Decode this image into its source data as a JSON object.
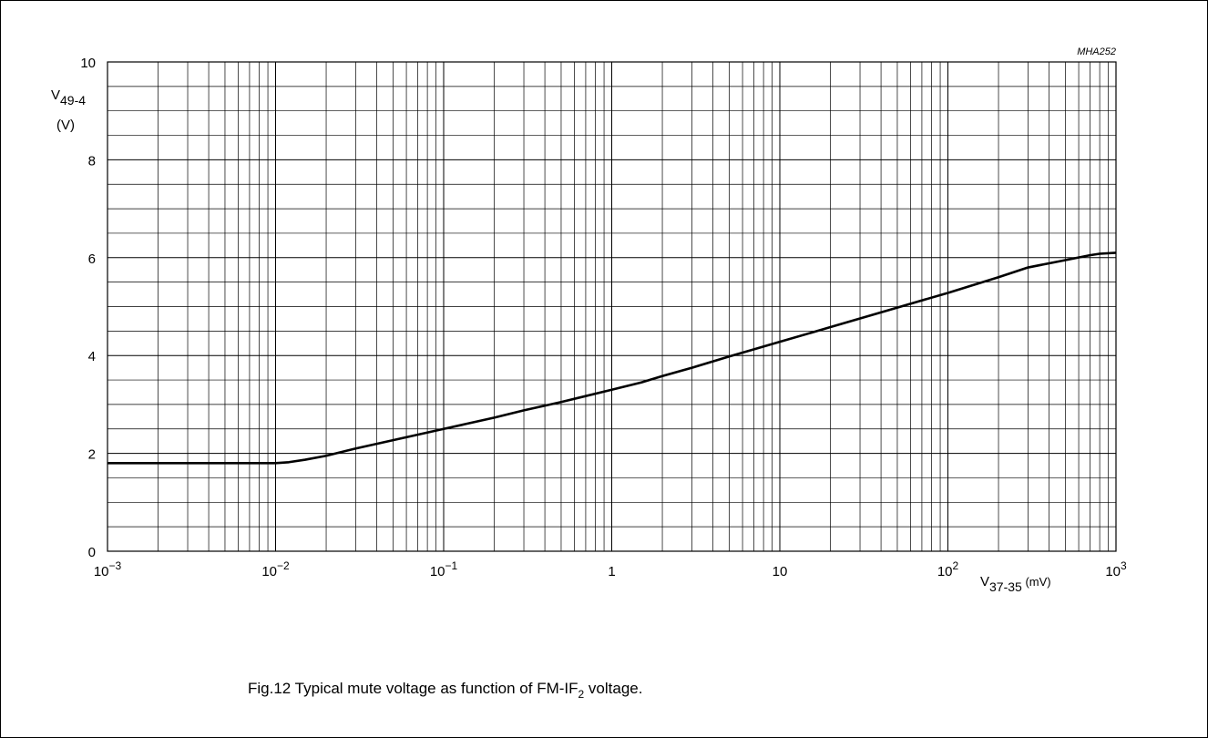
{
  "figure_code": "MHA252",
  "caption": {
    "prefix": "Fig.12  Typical mute voltage as function of FM-IF",
    "sub": "2",
    "suffix": " voltage."
  },
  "chart_data": {
    "type": "line",
    "x_scale": "log",
    "xlim": [
      0.001,
      1000
    ],
    "ylim": [
      0,
      10
    ],
    "grid": true,
    "ylabel": {
      "main": "V",
      "sub": "49-4",
      "unit": "(V)"
    },
    "xlabel": {
      "main": "V",
      "sub": "37-35",
      "unit": " (mV)"
    },
    "x_tick_labels": [
      {
        "value": 0.001,
        "base": "10",
        "exp": "−3"
      },
      {
        "value": 0.01,
        "base": "10",
        "exp": "−2"
      },
      {
        "value": 0.1,
        "base": "10",
        "exp": "−1"
      },
      {
        "value": 1,
        "base": "1",
        "exp": ""
      },
      {
        "value": 10,
        "base": "10",
        "exp": ""
      },
      {
        "value": 100,
        "base": "10",
        "exp": "2"
      },
      {
        "value": 1000,
        "base": "10",
        "exp": "3"
      }
    ],
    "y_ticks": [
      0,
      2,
      4,
      6,
      8,
      10
    ],
    "series": [
      {
        "x": [
          0.001,
          0.002,
          0.005,
          0.008,
          0.01,
          0.012,
          0.015,
          0.02,
          0.03,
          0.05,
          0.1,
          0.2,
          0.3,
          0.5,
          1,
          1.5,
          2,
          3,
          5,
          10,
          20,
          50,
          100,
          200,
          300,
          500,
          700,
          800,
          1000
        ],
        "y": [
          1.8,
          1.8,
          1.8,
          1.8,
          1.8,
          1.82,
          1.87,
          1.95,
          2.1,
          2.27,
          2.5,
          2.73,
          2.88,
          3.05,
          3.3,
          3.45,
          3.58,
          3.75,
          3.98,
          4.28,
          4.58,
          4.98,
          5.28,
          5.6,
          5.8,
          5.95,
          6.05,
          6.08,
          6.1
        ]
      }
    ]
  }
}
